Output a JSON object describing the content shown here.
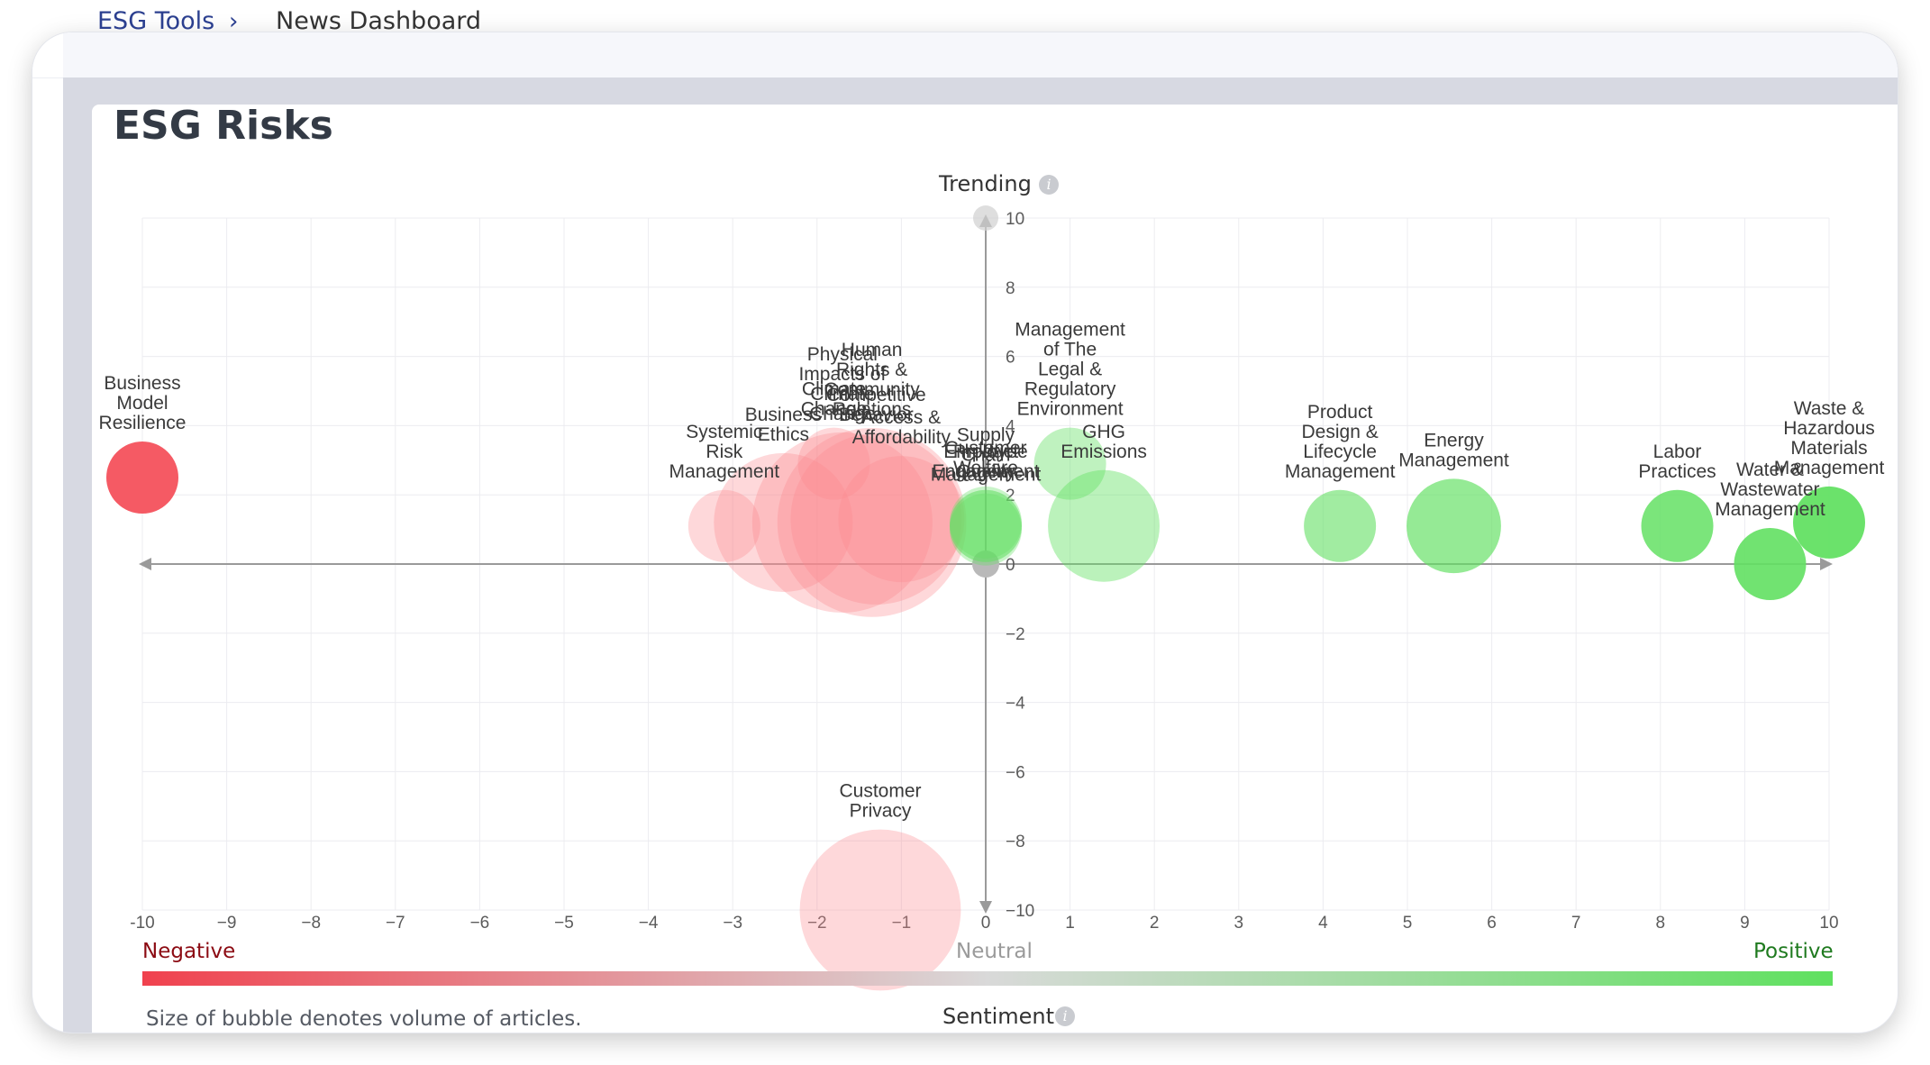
{
  "breadcrumb": {
    "parent": "ESG Tools",
    "separator": "›",
    "current": "News Dashboard"
  },
  "card": {
    "title": "ESG Risks",
    "footnote": "Size of bubble denotes volume of articles."
  },
  "legend": {
    "negative": "Negative",
    "neutral": "Neutral",
    "positive": "Positive",
    "negative_color": "#f0414e",
    "neutral_color": "#d9d9d9",
    "positive_color": "#5fe05f"
  },
  "icons": {
    "trending_info": "info-icon",
    "sentiment_info": "info-icon",
    "breadcrumb_separator": "chevron-right-icon"
  },
  "chart_data": {
    "type": "scatter",
    "subtype": "bubble",
    "xlabel": "Sentiment",
    "ylabel": "Trending",
    "xlim": [
      -10,
      10
    ],
    "ylim": [
      -10,
      10
    ],
    "x_ticks": [
      -10,
      -9,
      -8,
      -7,
      -6,
      -5,
      -4,
      -3,
      -2,
      -1,
      0,
      1,
      2,
      3,
      4,
      5,
      6,
      7,
      8,
      9,
      10
    ],
    "y_ticks": [
      -10,
      -8,
      -6,
      -4,
      -2,
      0,
      2,
      4,
      6,
      8,
      10
    ],
    "x_tick_labels": [
      "-10",
      "−9",
      "−8",
      "−7",
      "−6",
      "−5",
      "−4",
      "−3",
      "−2",
      "−1",
      "0",
      "1",
      "2",
      "3",
      "4",
      "5",
      "6",
      "7",
      "8",
      "9",
      "10"
    ],
    "y_tick_labels": [
      "−10",
      "−8",
      "−6",
      "−4",
      "−2",
      "0",
      "2",
      "4",
      "6",
      "8",
      "10"
    ],
    "grid": true,
    "points": [
      {
        "label": "Business Model Resilience",
        "x": -10,
        "y": 2.5,
        "size": 1
      },
      {
        "label": "Systemic Risk Management",
        "x": -3.1,
        "y": 1.1,
        "size": 1
      },
      {
        "label": "Business Ethics",
        "x": -2.4,
        "y": 1.2,
        "size": 5
      },
      {
        "label": "Climate Change",
        "x": -1.8,
        "y": 2.9,
        "size": 1
      },
      {
        "label": "Physical Impacts of Climate Change",
        "x": -1.7,
        "y": 1.2,
        "size": 9
      },
      {
        "label": "Human Rights & Community Relations",
        "x": -1.35,
        "y": 1.2,
        "size": 10
      },
      {
        "label": "Competitive Behavior",
        "x": -1.3,
        "y": 1.3,
        "size": 8
      },
      {
        "label": "Access & Affordability",
        "x": -1.0,
        "y": 1.3,
        "size": 4
      },
      {
        "label": "Customer Welfare",
        "x": 0,
        "y": 1.2,
        "size": 1
      },
      {
        "label": "Employee Engagement",
        "x": 0,
        "y": 1.1,
        "size": 1
      },
      {
        "label": "Product Quality",
        "x": 0,
        "y": 1.1,
        "size": 1
      },
      {
        "label": "Supply Chain Management",
        "x": 0,
        "y": 1.0,
        "size": 1
      },
      {
        "label": "Management of The Legal & Regulatory Environment",
        "x": 1.0,
        "y": 2.9,
        "size": 1
      },
      {
        "label": "GHG Emissions",
        "x": 1.4,
        "y": 1.1,
        "size": 3
      },
      {
        "label": "Product Design & Lifecycle Management",
        "x": 4.2,
        "y": 1.1,
        "size": 1
      },
      {
        "label": "Energy Management",
        "x": 5.55,
        "y": 1.1,
        "size": 2
      },
      {
        "label": "Labor Practices",
        "x": 8.2,
        "y": 1.1,
        "size": 1
      },
      {
        "label": "Water & Wastewater Management",
        "x": 9.3,
        "y": 0,
        "size": 1
      },
      {
        "label": "Waste & Hazardous Materials Management",
        "x": 10,
        "y": 1.2,
        "size": 1
      },
      {
        "label": "Customer Privacy",
        "x": -1.25,
        "y": -10,
        "size": 7
      }
    ]
  }
}
